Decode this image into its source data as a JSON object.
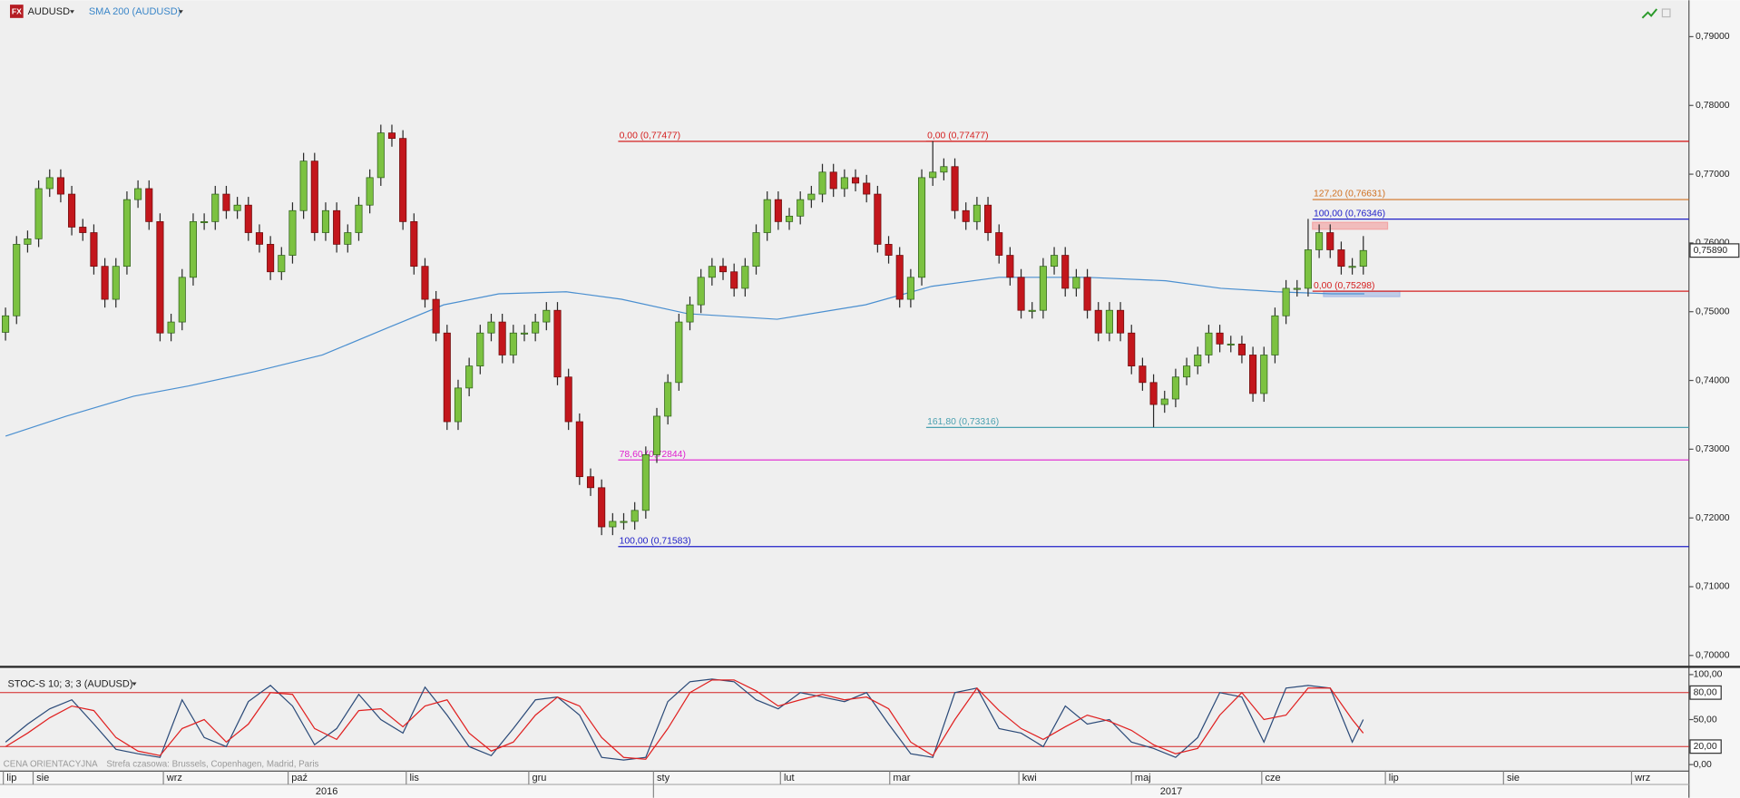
{
  "header": {
    "icon": "FX"
  },
  "chart_data": [
    {
      "type": "candlestick",
      "symbol": "AUDUSD",
      "up_color": "#7cc241",
      "down_color": "#c3161c",
      "wick_color": "#2a2a2a",
      "open": [
        0.747,
        0.7494,
        0.7598,
        0.7606,
        0.7679,
        0.7695,
        0.7671,
        0.7623,
        0.7615,
        0.7566,
        0.7518,
        0.7566,
        0.7663,
        0.7679,
        0.7631,
        0.7469,
        0.7485,
        0.755,
        0.7631,
        0.7631,
        0.7671,
        0.7647,
        0.7655,
        0.7615,
        0.7598,
        0.7558,
        0.7582,
        0.7647,
        0.7719,
        0.7615,
        0.7647,
        0.7598,
        0.7615,
        0.7655,
        0.7695,
        0.776,
        0.7752,
        0.7631,
        0.7566,
        0.7518,
        0.7469,
        0.734,
        0.7389,
        0.7421,
        0.7469,
        0.7485,
        0.7437,
        0.7469,
        0.7469,
        0.7485,
        0.7502,
        0.7405,
        0.734,
        0.726,
        0.7244,
        0.7187,
        0.7195,
        0.7195,
        0.7211,
        0.7292,
        0.7348,
        0.7397,
        0.7485,
        0.751,
        0.755,
        0.7566,
        0.7558,
        0.7534,
        0.7566,
        0.7615,
        0.7663,
        0.7631,
        0.7639,
        0.7663,
        0.7671,
        0.7703,
        0.7679,
        0.7695,
        0.7687,
        0.7671,
        0.7598,
        0.7582,
        0.7518,
        0.755,
        0.7695,
        0.7703,
        0.7711,
        0.7647,
        0.7631,
        0.7655,
        0.7615,
        0.7582,
        0.755,
        0.7502,
        0.7502,
        0.7566,
        0.7582,
        0.7534,
        0.755,
        0.7502,
        0.7469,
        0.7502,
        0.7469,
        0.7421,
        0.7397,
        0.7365,
        0.7373,
        0.7405,
        0.7421,
        0.7437,
        0.7469,
        0.7453,
        0.7453,
        0.7437,
        0.7381,
        0.7437,
        0.7494,
        0.7534,
        0.7534,
        0.759,
        0.7615,
        0.759,
        0.7566,
        0.7566
      ],
      "high": [
        0.7506,
        0.761,
        0.7618,
        0.7691,
        0.7707,
        0.7707,
        0.7683,
        0.7635,
        0.7627,
        0.7578,
        0.7578,
        0.7675,
        0.7691,
        0.7691,
        0.7643,
        0.7497,
        0.7562,
        0.7643,
        0.7643,
        0.7683,
        0.7683,
        0.7667,
        0.7667,
        0.7627,
        0.761,
        0.7594,
        0.7659,
        0.7731,
        0.7731,
        0.7659,
        0.7659,
        0.7627,
        0.7667,
        0.7707,
        0.7772,
        0.7772,
        0.7764,
        0.7643,
        0.7578,
        0.753,
        0.7481,
        0.7401,
        0.7433,
        0.7481,
        0.7497,
        0.7497,
        0.7481,
        0.7481,
        0.7497,
        0.7514,
        0.7514,
        0.7417,
        0.7352,
        0.7272,
        0.7256,
        0.7207,
        0.7207,
        0.7223,
        0.7304,
        0.736,
        0.7409,
        0.7497,
        0.7522,
        0.7562,
        0.7578,
        0.7578,
        0.757,
        0.7578,
        0.7627,
        0.7675,
        0.7675,
        0.7651,
        0.7675,
        0.7683,
        0.7715,
        0.7715,
        0.7707,
        0.7707,
        0.7699,
        0.7683,
        0.761,
        0.7594,
        0.7562,
        0.7707,
        0.7748,
        0.7723,
        0.7723,
        0.7659,
        0.7667,
        0.7667,
        0.7627,
        0.7594,
        0.7562,
        0.7514,
        0.7578,
        0.7594,
        0.7594,
        0.7562,
        0.7562,
        0.7514,
        0.7514,
        0.7514,
        0.7481,
        0.7433,
        0.7409,
        0.7385,
        0.7417,
        0.7433,
        0.7449,
        0.7481,
        0.7481,
        0.7465,
        0.7465,
        0.7449,
        0.7449,
        0.7506,
        0.7546,
        0.7546,
        0.7635,
        0.7627,
        0.7627,
        0.7602,
        0.7578,
        0.761
      ],
      "low": [
        0.7458,
        0.7482,
        0.7586,
        0.7594,
        0.7667,
        0.7659,
        0.7611,
        0.7603,
        0.7554,
        0.7506,
        0.7506,
        0.7554,
        0.7651,
        0.7619,
        0.7457,
        0.7457,
        0.7473,
        0.7538,
        0.7619,
        0.7619,
        0.7635,
        0.7635,
        0.7603,
        0.7586,
        0.7546,
        0.7546,
        0.757,
        0.7635,
        0.7603,
        0.7603,
        0.7586,
        0.7586,
        0.7603,
        0.7643,
        0.7683,
        0.774,
        0.7619,
        0.7554,
        0.7506,
        0.7457,
        0.7328,
        0.7328,
        0.7377,
        0.7409,
        0.7457,
        0.7425,
        0.7425,
        0.7457,
        0.7457,
        0.7473,
        0.7393,
        0.7328,
        0.7248,
        0.7232,
        0.7175,
        0.7175,
        0.7183,
        0.7183,
        0.7199,
        0.728,
        0.7336,
        0.7385,
        0.7473,
        0.7498,
        0.7538,
        0.7546,
        0.7522,
        0.7522,
        0.7554,
        0.7603,
        0.7619,
        0.7619,
        0.7627,
        0.7651,
        0.7659,
        0.7667,
        0.7667,
        0.7675,
        0.7659,
        0.7586,
        0.757,
        0.7506,
        0.7506,
        0.7538,
        0.7683,
        0.7691,
        0.7635,
        0.7619,
        0.7619,
        0.7603,
        0.757,
        0.7538,
        0.749,
        0.749,
        0.749,
        0.7554,
        0.7522,
        0.7522,
        0.749,
        0.7457,
        0.7457,
        0.7457,
        0.7409,
        0.7385,
        0.7332,
        0.7353,
        0.7361,
        0.7393,
        0.7409,
        0.7425,
        0.7441,
        0.7441,
        0.7425,
        0.7369,
        0.7369,
        0.7425,
        0.7482,
        0.7522,
        0.7522,
        0.7578,
        0.7578,
        0.7554,
        0.7554,
        0.7554
      ],
      "close": [
        0.7494,
        0.7598,
        0.7606,
        0.7679,
        0.7695,
        0.7671,
        0.7623,
        0.7615,
        0.7566,
        0.7518,
        0.7566,
        0.7663,
        0.7679,
        0.7631,
        0.7469,
        0.7485,
        0.755,
        0.7631,
        0.7631,
        0.7671,
        0.7647,
        0.7655,
        0.7615,
        0.7598,
        0.7558,
        0.7582,
        0.7647,
        0.7719,
        0.7615,
        0.7647,
        0.7598,
        0.7615,
        0.7655,
        0.7695,
        0.776,
        0.7752,
        0.7631,
        0.7566,
        0.7518,
        0.7469,
        0.734,
        0.7389,
        0.7421,
        0.7469,
        0.7485,
        0.7437,
        0.7469,
        0.7469,
        0.7485,
        0.7502,
        0.7405,
        0.734,
        0.726,
        0.7244,
        0.7187,
        0.7195,
        0.7195,
        0.7211,
        0.7292,
        0.7348,
        0.7397,
        0.7485,
        0.751,
        0.755,
        0.7566,
        0.7558,
        0.7534,
        0.7566,
        0.7615,
        0.7663,
        0.7631,
        0.7639,
        0.7663,
        0.7671,
        0.7703,
        0.7679,
        0.7695,
        0.7687,
        0.7671,
        0.7598,
        0.7582,
        0.7518,
        0.755,
        0.7695,
        0.7703,
        0.7711,
        0.7647,
        0.7631,
        0.7655,
        0.7615,
        0.7582,
        0.755,
        0.7502,
        0.7502,
        0.7566,
        0.7582,
        0.7534,
        0.755,
        0.7502,
        0.7469,
        0.7502,
        0.7469,
        0.7421,
        0.7397,
        0.7365,
        0.7373,
        0.7405,
        0.7421,
        0.7437,
        0.7469,
        0.7453,
        0.7453,
        0.7437,
        0.7381,
        0.7437,
        0.7494,
        0.7534,
        0.7534,
        0.759,
        0.7615,
        0.759,
        0.7566,
        0.7566,
        0.7589
      ],
      "sma": {
        "name": "SMA 200 (AUDUSD)",
        "color": "#4a8fd0",
        "x": [
          0.0,
          5.5,
          11.6,
          16.6,
          22.6,
          28.7,
          34.7,
          39.7,
          44.7,
          50.8,
          55.8,
          61.8,
          69.9,
          77.9,
          83.9,
          90.0,
          98.0,
          105.1,
          110.1,
          115.1,
          120.1,
          123.1
        ],
        "values": [
          0.7319,
          0.7348,
          0.7377,
          0.7392,
          0.7413,
          0.7437,
          0.7477,
          0.751,
          0.7526,
          0.7529,
          0.7518,
          0.7497,
          0.7489,
          0.751,
          0.7537,
          0.755,
          0.755,
          0.7545,
          0.7534,
          0.7529,
          0.7526,
          0.7526
        ]
      },
      "levels": [
        {
          "value": 0.77477,
          "x0": 55.5,
          "label": "0,00 (0,77477)",
          "color": "#d42020"
        },
        {
          "value": 0.77477,
          "x0": 83.4,
          "label": "0,00 (0,77477)",
          "color": "#d42020"
        },
        {
          "value": 0.71583,
          "x0": 55.5,
          "label": "100,00 (0,71583)",
          "color": "#2020c8"
        },
        {
          "value": 0.72844,
          "x0": 55.5,
          "label": "78,60 (0,72844)",
          "color": "#e020d0"
        },
        {
          "value": 0.73316,
          "x0": 83.4,
          "label": "161,80 (0,73316)",
          "color": "#4aa0b0"
        },
        {
          "value": 0.76631,
          "x0": 118.4,
          "label": "127,20 (0,76631)",
          "color": "#d07020"
        },
        {
          "value": 0.76346,
          "x0": 118.4,
          "label": "100,00 (0,76346)",
          "color": "#2020c8"
        },
        {
          "value": 0.75298,
          "x0": 118.4,
          "label": "0,00 (0,75298)",
          "color": "#d42020"
        }
      ],
      "zones": [
        {
          "x0": 118.4,
          "x1": 125.2,
          "low": 0.762,
          "high": 0.763,
          "color": "#f2a6a6"
        },
        {
          "x0": 119.4,
          "x1": 126.3,
          "low": 0.7522,
          "high": 0.753,
          "color": "#a9bde6"
        }
      ],
      "last_price": {
        "value": 0.7589,
        "label": "0,75890"
      },
      "xlim": [
        -0.5,
        152.5
      ],
      "ylim": [
        0.6985,
        0.7953
      ],
      "yticks": [
        {
          "value": 0.79,
          "label": "0,79000"
        },
        {
          "value": 0.78,
          "label": "0,78000"
        },
        {
          "value": 0.77,
          "label": "0,77000"
        },
        {
          "value": 0.76,
          "label": "0,76000"
        },
        {
          "value": 0.75,
          "label": "0,75000"
        },
        {
          "value": 0.74,
          "label": "0,74000"
        },
        {
          "value": 0.73,
          "label": "0,73000"
        },
        {
          "value": 0.72,
          "label": "0,72000"
        },
        {
          "value": 0.71,
          "label": "0,71000"
        },
        {
          "value": 0.7,
          "label": "0,70000"
        }
      ],
      "xticks": [
        {
          "value": -0.2,
          "label": "lip"
        },
        {
          "value": 2.5,
          "label": "sie"
        },
        {
          "value": 14.3,
          "label": "wrz"
        },
        {
          "value": 25.6,
          "label": "paź"
        },
        {
          "value": 36.3,
          "label": "lis"
        },
        {
          "value": 47.4,
          "label": "gru"
        },
        {
          "value": 58.7,
          "label": "sty"
        },
        {
          "value": 70.2,
          "label": "lut"
        },
        {
          "value": 80.1,
          "label": "mar"
        },
        {
          "value": 91.8,
          "label": "kwi"
        },
        {
          "value": 102.0,
          "label": "maj"
        },
        {
          "value": 113.8,
          "label": "cze"
        },
        {
          "value": 125.0,
          "label": "lip"
        },
        {
          "value": 135.7,
          "label": "sie"
        },
        {
          "value": 147.3,
          "label": "wrz"
        }
      ],
      "year_labels": [
        "2016",
        "2017"
      ]
    },
    {
      "type": "line",
      "title": "STOC-S 10; 3; 3 (AUDUSD)",
      "x": [
        0,
        2,
        4,
        6,
        8,
        10,
        12,
        14,
        16,
        18,
        20,
        22,
        24,
        26,
        28,
        30,
        32,
        34,
        36,
        38,
        40,
        42,
        44,
        46,
        48,
        50,
        52,
        54,
        56,
        58,
        60,
        62,
        64,
        66,
        68,
        70,
        72,
        74,
        76,
        78,
        80,
        82,
        84,
        86,
        88,
        90,
        92,
        94,
        96,
        98,
        100,
        102,
        104,
        106,
        108,
        110,
        112,
        114,
        116,
        118,
        120,
        122,
        123
      ],
      "series": [
        {
          "color": "#2b4a78",
          "values": [
            25,
            45,
            62,
            72,
            45,
            17,
            12,
            8,
            72,
            30,
            20,
            70,
            88,
            65,
            22,
            40,
            78,
            50,
            35,
            86,
            55,
            20,
            10,
            40,
            72,
            75,
            55,
            8,
            5,
            8,
            70,
            92,
            95,
            92,
            72,
            62,
            80,
            75,
            70,
            80,
            45,
            12,
            8,
            80,
            85,
            40,
            35,
            20,
            65,
            45,
            50,
            25,
            18,
            8,
            30,
            80,
            75,
            25,
            85,
            88,
            85,
            25,
            50
          ]
        },
        {
          "color": "#e02020",
          "values": [
            20,
            35,
            52,
            65,
            60,
            30,
            15,
            10,
            40,
            50,
            25,
            45,
            80,
            78,
            40,
            28,
            60,
            62,
            42,
            65,
            72,
            35,
            15,
            25,
            55,
            75,
            65,
            30,
            8,
            6,
            40,
            80,
            94,
            94,
            82,
            65,
            72,
            78,
            72,
            75,
            62,
            25,
            10,
            50,
            85,
            60,
            40,
            28,
            42,
            55,
            48,
            38,
            22,
            12,
            18,
            55,
            80,
            50,
            55,
            85,
            85,
            50,
            35
          ]
        }
      ],
      "levels": [
        80,
        20
      ],
      "level_color": "#d42020",
      "xlim": [
        -0.5,
        152.5
      ],
      "ylim": [
        -7.3,
        106.1
      ],
      "yticks": [
        {
          "value": 100,
          "label": "100,00"
        },
        {
          "value": 80,
          "label": "80,00"
        },
        {
          "value": 50,
          "label": "50,00"
        },
        {
          "value": 20,
          "label": "20,00"
        },
        {
          "value": 0,
          "label": "0,00"
        }
      ]
    }
  ],
  "footer": {
    "status": "CENA ORIENTACYJNA",
    "timezone": "Strefa czasowa: Brussels, Copenhagen, Madrid, Paris"
  }
}
